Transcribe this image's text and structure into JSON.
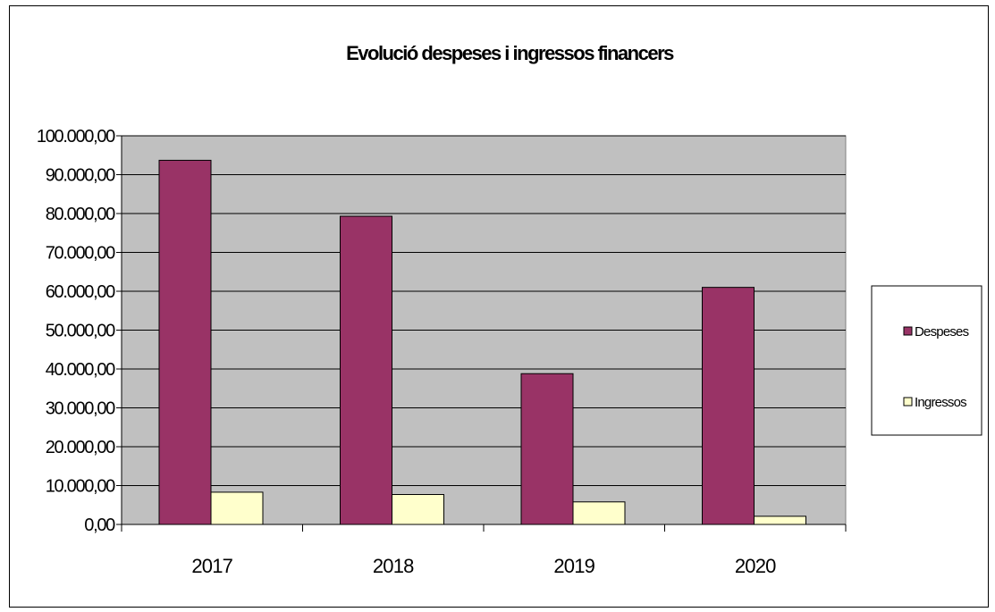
{
  "chart_data": {
    "type": "bar",
    "title": "Evolució despeses i ingressos financers",
    "xlabel": "",
    "ylabel": "",
    "categories": [
      "2017",
      "2018",
      "2019",
      "2020"
    ],
    "series": [
      {
        "name": "Despeses",
        "values": [
          93700,
          79300,
          38800,
          61000
        ]
      },
      {
        "name": "Ingressos",
        "values": [
          8300,
          7700,
          5800,
          2100
        ]
      }
    ],
    "ylim": [
      0,
      100000
    ],
    "yticks": [
      0,
      10000,
      20000,
      30000,
      40000,
      50000,
      60000,
      70000,
      80000,
      90000,
      100000
    ],
    "ytick_labels": [
      "0,00",
      "10.000,00",
      "20.000,00",
      "30.000,00",
      "40.000,00",
      "50.000,00",
      "60.000,00",
      "70.000,00",
      "80.000,00",
      "90.000,00",
      "100.000,00"
    ],
    "grid": true,
    "legend_position": "right",
    "colors": {
      "Despeses": "#993366",
      "Ingressos": "#FFFFCC",
      "plot_background": "#C0C0C0"
    }
  }
}
